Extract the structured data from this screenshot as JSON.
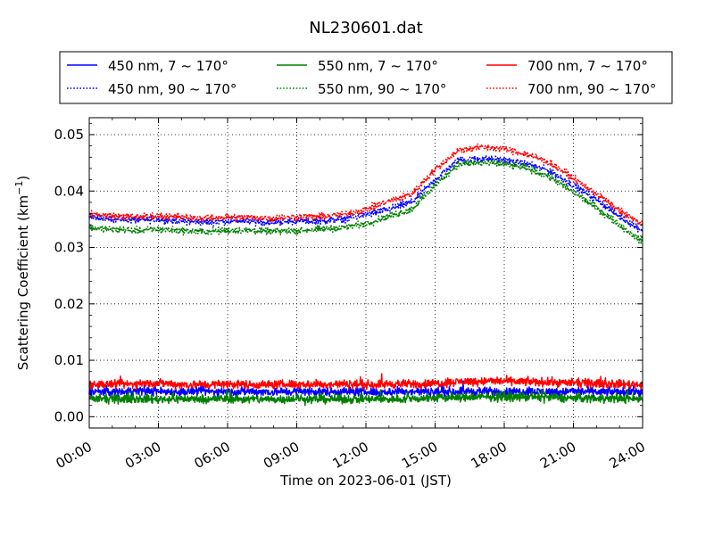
{
  "chart_data": {
    "type": "line",
    "title": "NL230601.dat",
    "xlabel": "Time on 2023-06-01 (JST)",
    "ylabel_main": "Scattering Coefficient (km",
    "ylabel_sup": "−1",
    "ylabel_close": ")",
    "x_unit": "hours",
    "xlim": [
      0,
      24
    ],
    "ylim": [
      -0.002,
      0.053
    ],
    "grid": true,
    "legend_position": "top",
    "x_ticks": [
      {
        "value": 0,
        "label": "00:00"
      },
      {
        "value": 3,
        "label": "03:00"
      },
      {
        "value": 6,
        "label": "06:00"
      },
      {
        "value": 9,
        "label": "09:00"
      },
      {
        "value": 12,
        "label": "12:00"
      },
      {
        "value": 15,
        "label": "15:00"
      },
      {
        "value": 18,
        "label": "18:00"
      },
      {
        "value": 21,
        "label": "21:00"
      },
      {
        "value": 24,
        "label": "24:00"
      }
    ],
    "y_ticks": [
      {
        "value": 0.0,
        "label": "0.00"
      },
      {
        "value": 0.01,
        "label": "0.01"
      },
      {
        "value": 0.02,
        "label": "0.02"
      },
      {
        "value": 0.03,
        "label": "0.03"
      },
      {
        "value": 0.04,
        "label": "0.04"
      },
      {
        "value": 0.05,
        "label": "0.05"
      }
    ],
    "x": [
      0,
      1,
      2,
      3,
      4,
      5,
      6,
      7,
      8,
      9,
      10,
      11,
      12,
      13,
      14,
      15,
      16,
      17,
      18,
      19,
      20,
      21,
      22,
      23,
      24
    ],
    "series": [
      {
        "name": "450 nm, 7 ~ 170°",
        "color": "#0000ff",
        "style": "solid",
        "values": [
          0.0045,
          0.0044,
          0.0046,
          0.0045,
          0.0044,
          0.0045,
          0.0044,
          0.0045,
          0.0044,
          0.0045,
          0.0044,
          0.0045,
          0.0044,
          0.0044,
          0.0045,
          0.0044,
          0.0045,
          0.0045,
          0.0044,
          0.0045,
          0.0044,
          0.0045,
          0.0044,
          0.0044,
          0.0045
        ]
      },
      {
        "name": "450 nm, 90 ~ 170°",
        "color": "#0000ff",
        "style": "dotted",
        "values": [
          0.0355,
          0.035,
          0.0348,
          0.035,
          0.0347,
          0.0345,
          0.0347,
          0.0346,
          0.0345,
          0.0347,
          0.0347,
          0.035,
          0.0358,
          0.0368,
          0.038,
          0.042,
          0.0455,
          0.0458,
          0.0455,
          0.0448,
          0.0435,
          0.041,
          0.0385,
          0.0355,
          0.033
        ]
      },
      {
        "name": "550 nm, 7 ~ 170°",
        "color": "#008000",
        "style": "solid",
        "values": [
          0.0032,
          0.0031,
          0.0032,
          0.0031,
          0.0032,
          0.0031,
          0.0032,
          0.0031,
          0.0031,
          0.0032,
          0.0031,
          0.0031,
          0.0031,
          0.0031,
          0.0032,
          0.0033,
          0.0034,
          0.0035,
          0.0035,
          0.0035,
          0.0034,
          0.0033,
          0.0033,
          0.0032,
          0.0032
        ]
      },
      {
        "name": "550 nm, 90 ~ 170°",
        "color": "#008000",
        "style": "dotted",
        "values": [
          0.0335,
          0.0332,
          0.033,
          0.0332,
          0.033,
          0.0328,
          0.033,
          0.033,
          0.0328,
          0.033,
          0.0332,
          0.0335,
          0.0342,
          0.0355,
          0.0368,
          0.041,
          0.0448,
          0.045,
          0.0448,
          0.044,
          0.0425,
          0.0398,
          0.037,
          0.034,
          0.031
        ]
      },
      {
        "name": "700 nm, 7 ~ 170°",
        "color": "#ff0000",
        "style": "solid",
        "values": [
          0.0058,
          0.0057,
          0.0058,
          0.006,
          0.0057,
          0.0057,
          0.0058,
          0.0057,
          0.0057,
          0.0058,
          0.0057,
          0.0058,
          0.0057,
          0.0058,
          0.0058,
          0.0059,
          0.0062,
          0.0063,
          0.0063,
          0.0062,
          0.0061,
          0.006,
          0.0059,
          0.0058,
          0.0057
        ]
      },
      {
        "name": "700 nm, 90 ~ 170°",
        "color": "#ff0000",
        "style": "dotted",
        "values": [
          0.036,
          0.0356,
          0.0354,
          0.0356,
          0.0354,
          0.0352,
          0.0354,
          0.0353,
          0.0352,
          0.0354,
          0.0355,
          0.0358,
          0.0368,
          0.0382,
          0.0395,
          0.0438,
          0.0472,
          0.0478,
          0.0475,
          0.0465,
          0.045,
          0.0422,
          0.0395,
          0.0365,
          0.034
        ]
      }
    ]
  }
}
